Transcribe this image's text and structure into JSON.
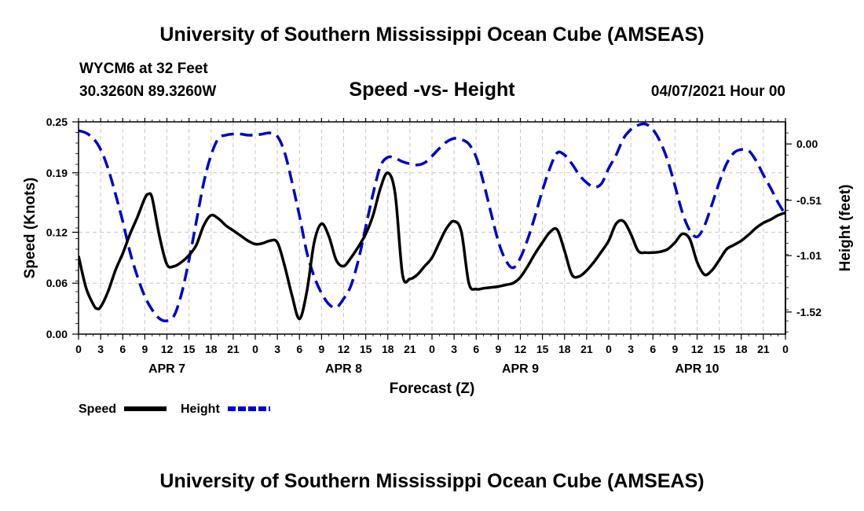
{
  "header": {
    "title": "University of Southern Mississippi Ocean Cube (AMSEAS)",
    "station": "WYCM6 at 32 Feet",
    "coords": "30.3260N  89.3260W",
    "chart_title": "Speed -vs- Height",
    "datetime": "04/07/2021 Hour 00"
  },
  "footer": {
    "title": "University of Southern Mississippi Ocean Cube (AMSEAS)"
  },
  "chart_data": {
    "type": "line",
    "title": "Speed -vs- Height",
    "xlabel": "Forecast (Z)",
    "ylabel_left": "Speed (Knots)",
    "ylabel_right": "Height (feet)",
    "x_range": [
      0,
      96
    ],
    "x_ticks": [
      0,
      3,
      6,
      9,
      12,
      15,
      18,
      21,
      24,
      27,
      30,
      33,
      36,
      39,
      42,
      45,
      48,
      51,
      54,
      57,
      60,
      63,
      66,
      69,
      72,
      75,
      78,
      81,
      84,
      87,
      90,
      93,
      96
    ],
    "x_tick_labels": [
      "0",
      "3",
      "6",
      "9",
      "12",
      "15",
      "18",
      "21",
      "0",
      "3",
      "6",
      "9",
      "12",
      "15",
      "18",
      "21",
      "0",
      "3",
      "6",
      "9",
      "12",
      "15",
      "18",
      "21",
      "0",
      "3",
      "6",
      "9",
      "12",
      "15",
      "18",
      "21",
      "0"
    ],
    "day_labels": [
      {
        "label": "APR 7",
        "x": 12
      },
      {
        "label": "APR 8",
        "x": 36
      },
      {
        "label": "APR 9",
        "x": 60
      },
      {
        "label": "APR 10",
        "x": 84
      }
    ],
    "left_axis": {
      "range": [
        0,
        0.25
      ],
      "ticks": [
        0,
        0.06,
        0.12,
        0.19,
        0.25
      ],
      "tick_labels": [
        "0.00",
        "0.06",
        "0.12",
        "0.19",
        "0.25"
      ]
    },
    "right_axis": {
      "range": [
        -1.72,
        0.2
      ],
      "ticks": [
        0.0,
        -0.51,
        -1.01,
        -1.52
      ],
      "tick_labels": [
        "0.00",
        "-0.51",
        "-1.01",
        "-1.52"
      ]
    },
    "grid": true,
    "legend": [
      {
        "label": "Speed",
        "color": "#000000",
        "style": "solid"
      },
      {
        "label": "Height",
        "color": "#0000cc",
        "style": "dashed"
      }
    ],
    "series": [
      {
        "name": "Speed",
        "axis": "left",
        "color": "#000000",
        "x": [
          0,
          1,
          2,
          2.5,
          3,
          4,
          5,
          6,
          7,
          8,
          9,
          9.5,
          10,
          11,
          12,
          13,
          14,
          15,
          16,
          17,
          18,
          19,
          20,
          21,
          22,
          23,
          24,
          25,
          26,
          27,
          28,
          29,
          30,
          31,
          32,
          33,
          34,
          35,
          36,
          37,
          38,
          39,
          40,
          41,
          42,
          43,
          44,
          45,
          46,
          47,
          48,
          49,
          50,
          51,
          52,
          53,
          54,
          55,
          56,
          57,
          58,
          59,
          60,
          61,
          62,
          63,
          64,
          65,
          66,
          67,
          68,
          69,
          70,
          71,
          72,
          73,
          74,
          75,
          76,
          77,
          78,
          79,
          80,
          81,
          82,
          83,
          84,
          85,
          86,
          87,
          88,
          89,
          90,
          91,
          92,
          93,
          94,
          95,
          96
        ],
        "y": [
          0.092,
          0.055,
          0.035,
          0.03,
          0.032,
          0.05,
          0.075,
          0.095,
          0.118,
          0.138,
          0.16,
          0.165,
          0.16,
          0.115,
          0.082,
          0.08,
          0.085,
          0.093,
          0.105,
          0.128,
          0.14,
          0.136,
          0.128,
          0.122,
          0.116,
          0.11,
          0.106,
          0.107,
          0.11,
          0.108,
          0.08,
          0.045,
          0.018,
          0.05,
          0.108,
          0.13,
          0.115,
          0.087,
          0.08,
          0.09,
          0.103,
          0.118,
          0.14,
          0.172,
          0.19,
          0.165,
          0.07,
          0.065,
          0.07,
          0.08,
          0.09,
          0.108,
          0.125,
          0.133,
          0.12,
          0.06,
          0.053,
          0.054,
          0.055,
          0.056,
          0.058,
          0.06,
          0.067,
          0.08,
          0.095,
          0.108,
          0.12,
          0.123,
          0.098,
          0.07,
          0.068,
          0.075,
          0.085,
          0.097,
          0.11,
          0.13,
          0.133,
          0.118,
          0.098,
          0.096,
          0.096,
          0.097,
          0.1,
          0.108,
          0.118,
          0.112,
          0.085,
          0.07,
          0.075,
          0.087,
          0.1,
          0.105,
          0.11,
          0.117,
          0.125,
          0.131,
          0.135,
          0.14,
          0.143
        ]
      },
      {
        "name": "Height",
        "axis": "right",
        "color": "#0000cc",
        "x": [
          0,
          1,
          2,
          3,
          4,
          5,
          6,
          7,
          8,
          9,
          10,
          11,
          12,
          13,
          14,
          15,
          16,
          17,
          18,
          19,
          20,
          21,
          22,
          23,
          24,
          25,
          26,
          27,
          28,
          29,
          30,
          31,
          32,
          33,
          34,
          35,
          36,
          37,
          38,
          39,
          40,
          41,
          42,
          43,
          44,
          45,
          46,
          47,
          48,
          49,
          50,
          51,
          52,
          53,
          54,
          55,
          56,
          57,
          58,
          59,
          60,
          61,
          62,
          63,
          64,
          65,
          66,
          67,
          68,
          69,
          70,
          71,
          72,
          73,
          74,
          75,
          76,
          77,
          78,
          79,
          80,
          81,
          82,
          83,
          84,
          85,
          86,
          87,
          88,
          89,
          90,
          91,
          92,
          93,
          94,
          95,
          96
        ],
        "y": [
          0.12,
          0.1,
          0.05,
          -0.05,
          -0.22,
          -0.45,
          -0.7,
          -0.98,
          -1.2,
          -1.38,
          -1.5,
          -1.58,
          -1.6,
          -1.55,
          -1.35,
          -1.05,
          -0.7,
          -0.35,
          -0.1,
          0.05,
          0.08,
          0.09,
          0.09,
          0.08,
          0.08,
          0.09,
          0.1,
          0.07,
          -0.08,
          -0.35,
          -0.65,
          -0.98,
          -1.2,
          -1.35,
          -1.45,
          -1.48,
          -1.4,
          -1.28,
          -1.05,
          -0.75,
          -0.45,
          -0.2,
          -0.12,
          -0.13,
          -0.16,
          -0.18,
          -0.19,
          -0.17,
          -0.11,
          -0.04,
          0.02,
          0.05,
          0.04,
          0.0,
          -0.12,
          -0.35,
          -0.62,
          -0.88,
          -1.05,
          -1.12,
          -1.03,
          -0.86,
          -0.65,
          -0.42,
          -0.22,
          -0.08,
          -0.1,
          -0.18,
          -0.28,
          -0.35,
          -0.39,
          -0.36,
          -0.22,
          -0.1,
          0.05,
          0.13,
          0.17,
          0.18,
          0.13,
          0.02,
          -0.15,
          -0.38,
          -0.62,
          -0.78,
          -0.84,
          -0.74,
          -0.55,
          -0.35,
          -0.18,
          -0.08,
          -0.05,
          -0.06,
          -0.15,
          -0.28,
          -0.4,
          -0.53,
          -0.64
        ]
      }
    ]
  }
}
